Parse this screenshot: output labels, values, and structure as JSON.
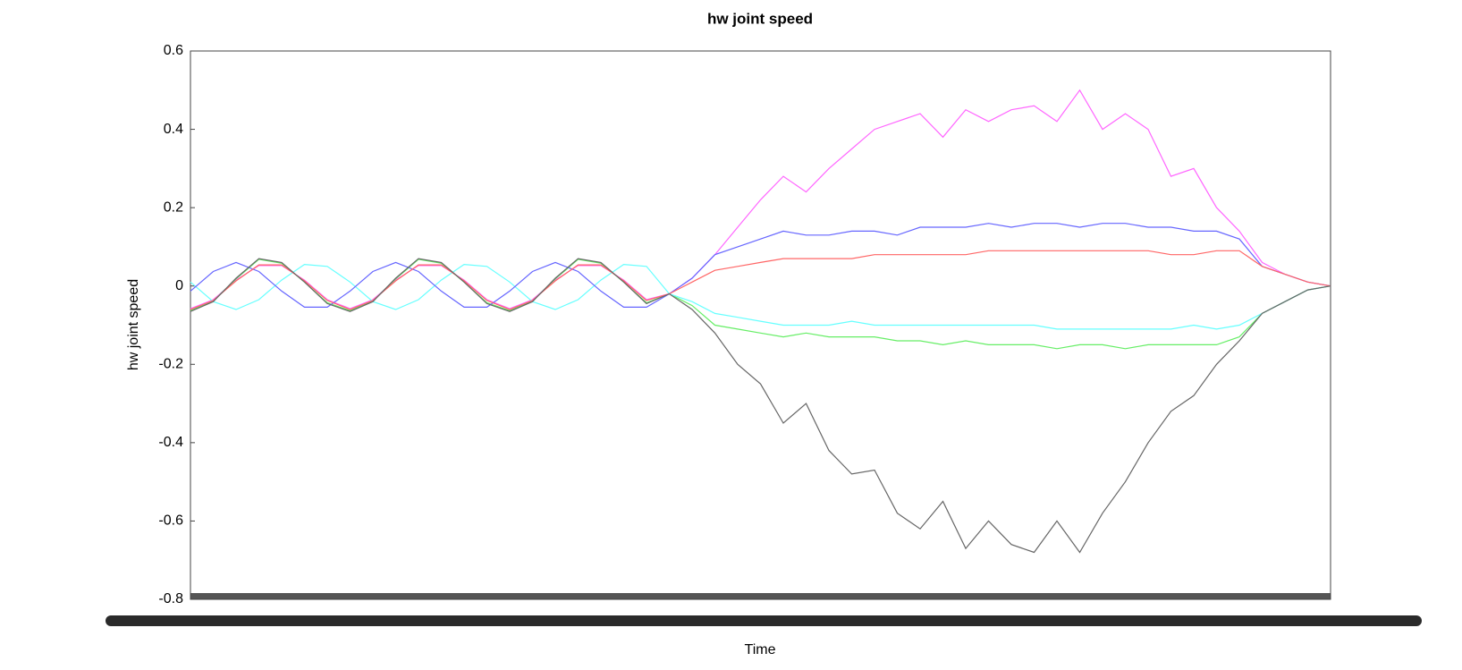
{
  "chart_data": {
    "type": "line",
    "title": "hw joint speed",
    "xlabel": "Time",
    "ylabel": "hw joint speed",
    "x": [
      0,
      1,
      2,
      3,
      4,
      5,
      6,
      7,
      8,
      9,
      10,
      11,
      12,
      13,
      14,
      15,
      16,
      17,
      18,
      19,
      20,
      21,
      22,
      23,
      24,
      25,
      26,
      27,
      28,
      29,
      30,
      31,
      32,
      33,
      34,
      35,
      36,
      37,
      38,
      39,
      40,
      41,
      42,
      43,
      44,
      45,
      46,
      47,
      48,
      49,
      50
    ],
    "xlim": [
      0,
      50
    ],
    "ylim": [
      -0.8,
      0.6
    ],
    "yticks": [
      0.6,
      0.4,
      0.2,
      0,
      -0.2,
      -0.4,
      -0.6,
      -0.8
    ],
    "series": [
      {
        "color": "#ff66ff",
        "values": [
          -0.058,
          -0.035,
          0.015,
          0.052,
          0.052,
          0.015,
          -0.035,
          -0.058,
          -0.035,
          0.015,
          0.052,
          0.052,
          0.015,
          -0.035,
          -0.058,
          -0.035,
          0.015,
          0.052,
          0.052,
          0.015,
          -0.035,
          -0.02,
          0.02,
          0.08,
          0.15,
          0.22,
          0.28,
          0.24,
          0.3,
          0.35,
          0.4,
          0.42,
          0.44,
          0.38,
          0.45,
          0.42,
          0.45,
          0.46,
          0.42,
          0.5,
          0.4,
          0.44,
          0.4,
          0.28,
          0.3,
          0.2,
          0.14,
          0.06,
          0.03,
          0.01,
          0
        ]
      },
      {
        "color": "#66ee66",
        "values": [
          -0.063,
          -0.038,
          0.018,
          0.068,
          0.058,
          0.01,
          -0.043,
          -0.063,
          -0.038,
          0.018,
          0.068,
          0.058,
          0.01,
          -0.043,
          -0.063,
          -0.038,
          0.018,
          0.068,
          0.058,
          0.01,
          -0.043,
          -0.02,
          -0.05,
          -0.1,
          -0.11,
          -0.12,
          -0.13,
          -0.12,
          -0.13,
          -0.13,
          -0.13,
          -0.14,
          -0.14,
          -0.15,
          -0.14,
          -0.15,
          -0.15,
          -0.15,
          -0.16,
          -0.15,
          -0.15,
          -0.16,
          -0.15,
          -0.15,
          -0.15,
          -0.15,
          -0.13,
          -0.07,
          -0.04,
          -0.01,
          0
        ]
      },
      {
        "color": "#66ffff",
        "values": [
          0.01,
          -0.04,
          -0.06,
          -0.035,
          0.015,
          0.055,
          0.05,
          0.01,
          -0.04,
          -0.06,
          -0.035,
          0.015,
          0.055,
          0.05,
          0.01,
          -0.04,
          -0.06,
          -0.035,
          0.015,
          0.055,
          0.05,
          -0.02,
          -0.04,
          -0.07,
          -0.08,
          -0.09,
          -0.1,
          -0.1,
          -0.1,
          -0.09,
          -0.1,
          -0.1,
          -0.1,
          -0.1,
          -0.1,
          -0.1,
          -0.1,
          -0.1,
          -0.11,
          -0.11,
          -0.11,
          -0.11,
          -0.11,
          -0.11,
          -0.1,
          -0.11,
          -0.1,
          -0.07,
          -0.04,
          -0.01,
          0
        ]
      },
      {
        "color": "#6666ff",
        "values": [
          -0.013,
          0.037,
          0.06,
          0.037,
          -0.013,
          -0.054,
          -0.054,
          -0.013,
          0.037,
          0.06,
          0.037,
          -0.013,
          -0.054,
          -0.054,
          -0.013,
          0.037,
          0.06,
          0.037,
          -0.013,
          -0.054,
          -0.054,
          -0.02,
          0.02,
          0.08,
          0.1,
          0.12,
          0.14,
          0.13,
          0.13,
          0.14,
          0.14,
          0.13,
          0.15,
          0.15,
          0.15,
          0.16,
          0.15,
          0.16,
          0.16,
          0.15,
          0.16,
          0.16,
          0.15,
          0.15,
          0.14,
          0.14,
          0.12,
          0.05,
          0.03,
          0.01,
          0
        ]
      },
      {
        "color": "#ff6666",
        "values": [
          -0.06,
          -0.037,
          0.013,
          0.054,
          0.054,
          0.013,
          -0.037,
          -0.06,
          -0.037,
          0.013,
          0.054,
          0.054,
          0.013,
          -0.037,
          -0.06,
          -0.037,
          0.013,
          0.054,
          0.054,
          0.013,
          -0.037,
          -0.02,
          0.01,
          0.04,
          0.05,
          0.06,
          0.07,
          0.07,
          0.07,
          0.07,
          0.08,
          0.08,
          0.08,
          0.08,
          0.08,
          0.09,
          0.09,
          0.09,
          0.09,
          0.09,
          0.09,
          0.09,
          0.09,
          0.08,
          0.08,
          0.09,
          0.09,
          0.05,
          0.03,
          0.01,
          0
        ]
      },
      {
        "color": "#666666",
        "values": [
          -0.065,
          -0.04,
          0.02,
          0.07,
          0.06,
          0.01,
          -0.045,
          -0.065,
          -0.04,
          0.02,
          0.07,
          0.06,
          0.01,
          -0.045,
          -0.065,
          -0.04,
          0.02,
          0.07,
          0.06,
          0.01,
          -0.045,
          -0.02,
          -0.06,
          -0.12,
          -0.2,
          -0.25,
          -0.35,
          -0.3,
          -0.42,
          -0.48,
          -0.47,
          -0.58,
          -0.62,
          -0.55,
          -0.67,
          -0.6,
          -0.66,
          -0.68,
          -0.6,
          -0.68,
          -0.58,
          -0.5,
          -0.4,
          -0.32,
          -0.28,
          -0.2,
          -0.14,
          -0.07,
          -0.04,
          -0.01,
          0
        ]
      }
    ]
  }
}
